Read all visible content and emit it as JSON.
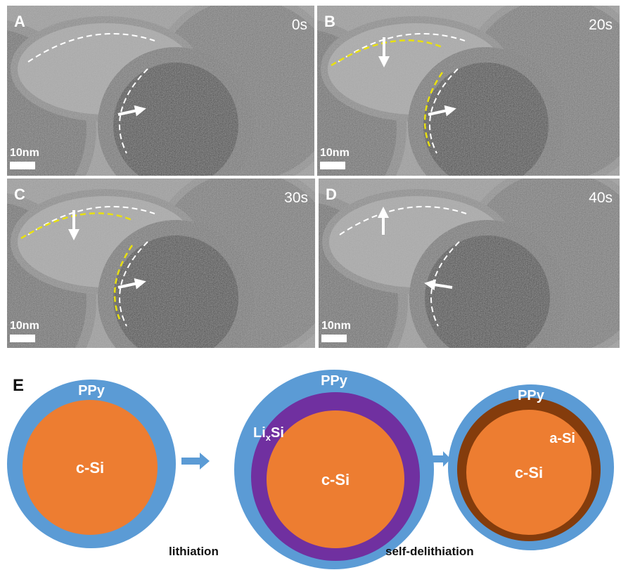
{
  "panels": [
    {
      "label": "A",
      "time": "0s",
      "scale": "10nm"
    },
    {
      "label": "B",
      "time": "20s",
      "scale": "10nm"
    },
    {
      "label": "C",
      "time": "30s",
      "scale": "10nm"
    },
    {
      "label": "D",
      "time": "40s",
      "scale": "10nm"
    }
  ],
  "diagram": {
    "label": "E",
    "stages": [
      {
        "shell": "PPy",
        "core": "c-Si"
      },
      {
        "shell": "PPy",
        "layer": {
          "main": "Li",
          "sub": "x",
          "tail": "Si"
        },
        "core": "c-Si"
      },
      {
        "shell": "PPy",
        "layer": "a-Si",
        "core": "c-Si"
      }
    ],
    "transitions": [
      "lithiation",
      "self-delithiation"
    ]
  }
}
